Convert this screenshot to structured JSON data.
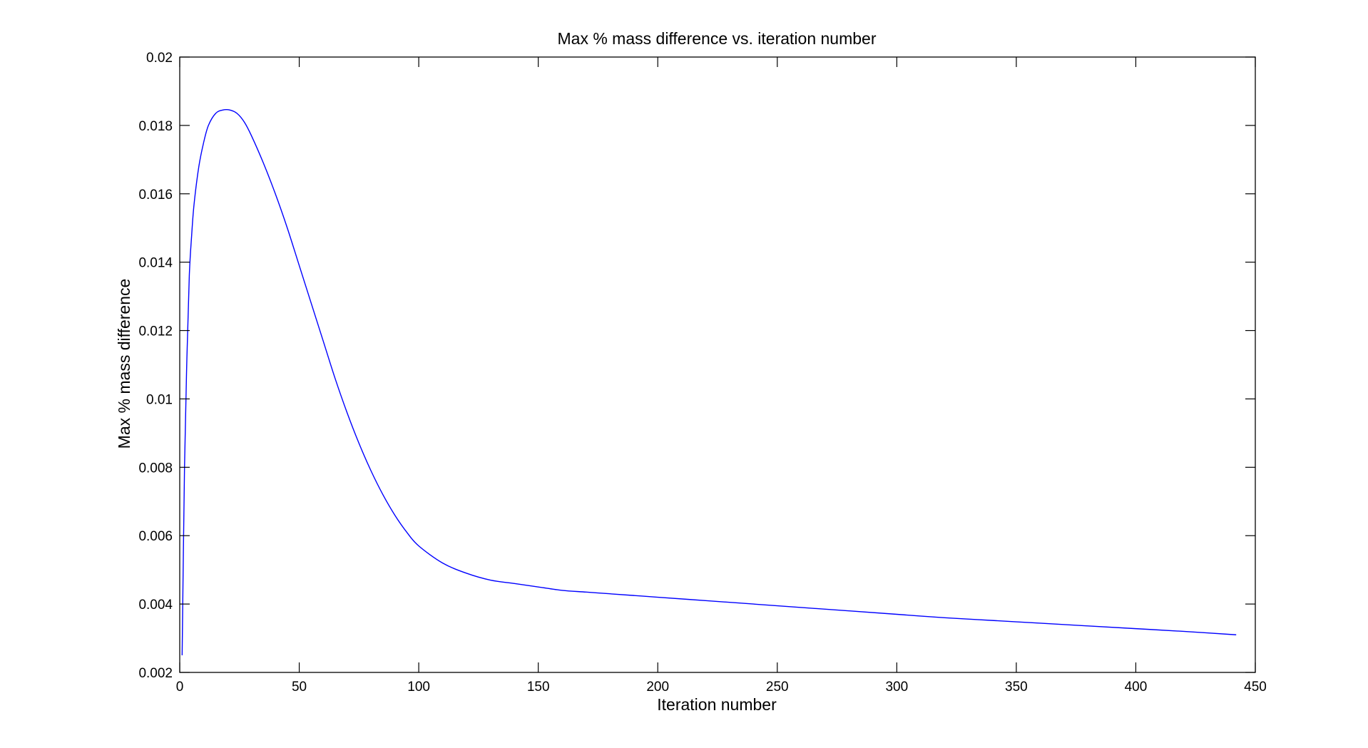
{
  "chart_data": {
    "type": "line",
    "title": "Max % mass difference vs. iteration number",
    "xlabel": "Iteration number",
    "ylabel": "Max % mass difference",
    "xlim": [
      0,
      450
    ],
    "ylim": [
      0.002,
      0.02
    ],
    "xticks": [
      0,
      50,
      100,
      150,
      200,
      250,
      300,
      350,
      400,
      450
    ],
    "xtick_labels": [
      "0",
      "50",
      "100",
      "150",
      "200",
      "250",
      "300",
      "350",
      "400",
      "450"
    ],
    "yticks": [
      0.002,
      0.004,
      0.006,
      0.008,
      0.01,
      0.012,
      0.014,
      0.016,
      0.018,
      0.02
    ],
    "ytick_labels": [
      "0.002",
      "0.004",
      "0.006",
      "0.008",
      "0.01",
      "0.012",
      "0.014",
      "0.016",
      "0.018",
      "0.02"
    ],
    "grid": false,
    "series": [
      {
        "color": "#0000ff",
        "x": [
          1,
          2,
          3,
          4,
          5,
          6,
          8,
          10,
          12,
          15,
          18,
          21,
          24,
          27,
          30,
          35,
          40,
          45,
          50,
          55,
          60,
          65,
          70,
          75,
          80,
          85,
          90,
          95,
          100,
          110,
          120,
          130,
          140,
          150,
          160,
          170,
          180,
          190,
          200,
          220,
          240,
          260,
          280,
          300,
          320,
          340,
          360,
          380,
          400,
          420,
          442
        ],
        "y": [
          0.0025,
          0.008,
          0.0112,
          0.0136,
          0.0148,
          0.0157,
          0.0168,
          0.0175,
          0.018,
          0.01835,
          0.01845,
          0.01845,
          0.01835,
          0.0181,
          0.0177,
          0.0169,
          0.016,
          0.015,
          0.0139,
          0.0128,
          0.0117,
          0.0106,
          0.0096,
          0.0087,
          0.0079,
          0.0072,
          0.0066,
          0.0061,
          0.0057,
          0.0052,
          0.0049,
          0.0047,
          0.0046,
          0.0045,
          0.0044,
          0.00435,
          0.0043,
          0.00425,
          0.0042,
          0.0041,
          0.004,
          0.0039,
          0.0038,
          0.0037,
          0.0036,
          0.00352,
          0.00344,
          0.00336,
          0.00328,
          0.0032,
          0.0031
        ]
      }
    ]
  }
}
